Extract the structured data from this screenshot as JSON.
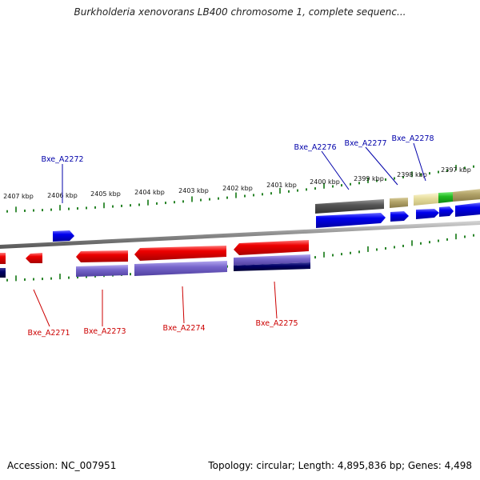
{
  "title": "Burkholderia xenovorans LB400 chromosome 1, complete sequenc...",
  "footer": {
    "accession": "Accession: NC_007951",
    "summary": "Topology: circular; Length: 4,895,836 bp; Genes: 4,498"
  },
  "ruler_labels": [
    "2407 kbp",
    "2406 kbp",
    "2405 kbp",
    "2404 kbp",
    "2403 kbp",
    "2402 kbp",
    "2401 kbp",
    "2400 kbp",
    "2399 kbp",
    "2398 kbp",
    "2397 kbp"
  ],
  "gene_labels": {
    "upper": [
      "Bxe_A2272",
      "Bxe_A2276",
      "Bxe_A2277",
      "Bxe_A2278"
    ],
    "lower": [
      "Bxe_A2271",
      "Bxe_A2273",
      "Bxe_A2274",
      "Bxe_A2275"
    ]
  },
  "colors": {
    "forward_gene": "#e00000",
    "reverse_gene": "#0000dd",
    "cds_lavender": "#7766cc",
    "cds_navy": "#000066",
    "dark_gray": "#555555",
    "khaki": "#b3a46a",
    "pale_yellow": "#e8dfa0",
    "green": "#22bb22",
    "ticks": "#117711",
    "label_red": "#cc0000",
    "label_blue": "#0000aa"
  }
}
